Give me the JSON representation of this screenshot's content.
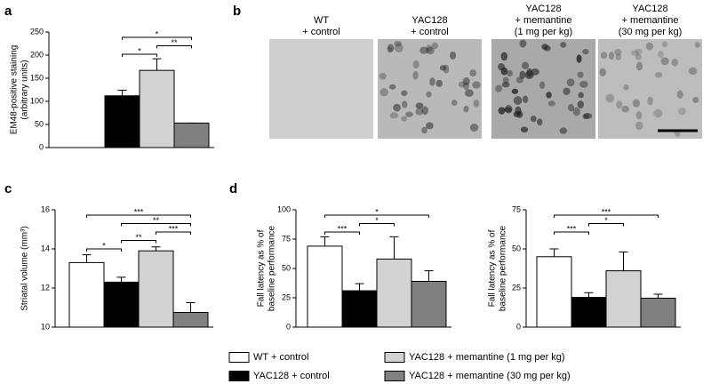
{
  "chart_data": [
    {
      "type": "bar",
      "panel_label": "a",
      "ylabel": [
        "EM48-positive staining",
        "(arbitrary units)"
      ],
      "values": [
        null,
        112,
        167,
        53
      ],
      "errors": [
        null,
        12,
        25,
        0
      ],
      "ylim": [
        0,
        250
      ],
      "yticks": [
        0,
        50,
        100,
        150,
        200,
        250
      ],
      "brackets": [
        {
          "between": [
            1,
            3
          ],
          "label": "*"
        },
        {
          "between": [
            2,
            3
          ],
          "label": "**"
        },
        {
          "between": [
            1,
            2
          ],
          "label": "*"
        }
      ]
    },
    {
      "type": "bar",
      "panel_label": "c",
      "ylabel": [
        "Striatal volume (mm³)"
      ],
      "values": [
        13.3,
        12.3,
        13.9,
        10.75
      ],
      "errors": [
        0.4,
        0.25,
        0.2,
        0.5
      ],
      "ylim": [
        10,
        16
      ],
      "yticks": [
        10,
        12,
        14,
        16
      ],
      "brackets": [
        {
          "between": [
            0,
            3
          ],
          "label": "***"
        },
        {
          "between": [
            1,
            3
          ],
          "label": "**"
        },
        {
          "between": [
            2,
            3
          ],
          "label": "***"
        },
        {
          "between": [
            1,
            2
          ],
          "label": "**"
        },
        {
          "between": [
            0,
            1
          ],
          "label": "*"
        }
      ]
    },
    {
      "type": "bar",
      "panel_label": "d",
      "ylabel": [
        "Fall latency as % of",
        "baseline performance"
      ],
      "values": [
        69,
        31,
        58,
        39
      ],
      "errors": [
        8,
        6,
        19,
        9
      ],
      "ylim": [
        0,
        100
      ],
      "yticks": [
        0,
        25,
        50,
        75,
        100
      ],
      "brackets": [
        {
          "between": [
            0,
            3
          ],
          "label": "*"
        },
        {
          "between": [
            1,
            2
          ],
          "label": "*"
        },
        {
          "between": [
            0,
            1
          ],
          "label": "***"
        }
      ]
    },
    {
      "type": "bar",
      "ylabel": [
        "Fall latency as % of",
        "baseline performance"
      ],
      "values": [
        45,
        19,
        36,
        18.5
      ],
      "errors": [
        5,
        3,
        12,
        2.5
      ],
      "ylim": [
        0,
        75
      ],
      "yticks": [
        0,
        25,
        50,
        75
      ],
      "brackets": [
        {
          "between": [
            0,
            3
          ],
          "label": "***"
        },
        {
          "between": [
            1,
            2
          ],
          "label": "*"
        },
        {
          "between": [
            0,
            1
          ],
          "label": "***"
        }
      ]
    }
  ],
  "legend": [
    {
      "name": "WT + control",
      "color": "#ffffff"
    },
    {
      "name": "YAC128 + control",
      "color": "#000000"
    },
    {
      "name": "YAC128 + memantine (1 mg per kg)",
      "color": "#d2d2d2"
    },
    {
      "name": "YAC128 + memantine (30 mg per kg)",
      "color": "#808080"
    }
  ],
  "images": {
    "panel_label": "b",
    "captions": [
      [
        "WT",
        "+ control"
      ],
      [
        "YAC128",
        "+ control"
      ],
      [
        "YAC128",
        "+ memantine",
        "(1 mg per kg)"
      ],
      [
        "YAC128",
        "+ memantine",
        "(30 mg per kg)"
      ]
    ]
  }
}
